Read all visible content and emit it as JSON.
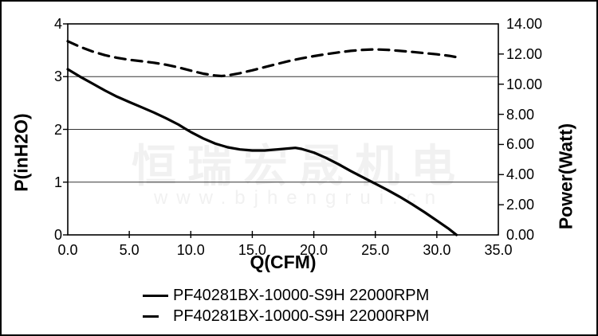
{
  "watermark": {
    "text": "恒瑞宏晟机电",
    "url": "www.bjhengrui.cn",
    "color": "#f1f1f1"
  },
  "colors": {
    "curve": "#000000",
    "grid": "#333333",
    "axis": "#000000",
    "background": "#ffffff"
  },
  "legend": {
    "items": [
      {
        "style": "solid",
        "label": "PF40281BX-10000-S9H 22000RPM"
      },
      {
        "style": "dashed",
        "label": "PF40281BX-10000-S9H 22000RPM"
      }
    ]
  },
  "chart_data": {
    "type": "line",
    "title": "",
    "xlabel": "Q(CFM)",
    "ylabel_left": "P(inH2O)",
    "ylabel_right": "Power(Watt)",
    "xlim": [
      0,
      35
    ],
    "ylim_left": [
      0,
      4
    ],
    "ylim_right": [
      0,
      14
    ],
    "grid": "horizontal",
    "legend_position": "bottom",
    "x_ticks": [
      {
        "label": "0.0",
        "value": 0
      },
      {
        "label": "5.0",
        "value": 5
      },
      {
        "label": "10.0",
        "value": 10
      },
      {
        "label": "15.0",
        "value": 15
      },
      {
        "label": "20.0",
        "value": 20
      },
      {
        "label": "25.0",
        "value": 25
      },
      {
        "label": "30.0",
        "value": 30
      },
      {
        "label": "35.0",
        "value": 35
      }
    ],
    "left_ticks": [
      {
        "label": "4",
        "value": 4
      },
      {
        "label": "3",
        "value": 3
      },
      {
        "label": "2",
        "value": 2
      },
      {
        "label": "1",
        "value": 1
      },
      {
        "label": "0",
        "value": 0
      }
    ],
    "right_ticks": [
      {
        "label": "14.00",
        "value": 14
      },
      {
        "label": "12.00",
        "value": 12
      },
      {
        "label": "10.00",
        "value": 10
      },
      {
        "label": "8.00",
        "value": 8
      },
      {
        "label": "6.00",
        "value": 6
      },
      {
        "label": "4.00",
        "value": 4
      },
      {
        "label": "2.00",
        "value": 2
      },
      {
        "label": "0.00",
        "value": 0
      }
    ],
    "series": [
      {
        "name": "PF40281BX-10000-S9H 22000RPM",
        "axis": "left",
        "line_style": "solid",
        "color": "#000000",
        "points": [
          [
            0,
            3.14
          ],
          [
            0.5,
            3.07
          ],
          [
            1,
            3.0
          ],
          [
            2,
            2.87
          ],
          [
            3,
            2.74
          ],
          [
            4,
            2.62
          ],
          [
            5,
            2.52
          ],
          [
            6,
            2.42
          ],
          [
            7,
            2.32
          ],
          [
            8,
            2.21
          ],
          [
            9,
            2.09
          ],
          [
            9.5,
            2.02
          ],
          [
            10,
            1.95
          ],
          [
            11,
            1.83
          ],
          [
            12,
            1.73
          ],
          [
            13,
            1.66
          ],
          [
            14,
            1.62
          ],
          [
            15,
            1.6
          ],
          [
            16,
            1.6
          ],
          [
            17,
            1.62
          ],
          [
            18,
            1.64
          ],
          [
            18.5,
            1.65
          ],
          [
            19,
            1.63
          ],
          [
            20,
            1.56
          ],
          [
            21,
            1.46
          ],
          [
            22,
            1.34
          ],
          [
            23,
            1.21
          ],
          [
            24,
            1.09
          ],
          [
            25,
            0.97
          ],
          [
            26,
            0.85
          ],
          [
            27,
            0.72
          ],
          [
            28,
            0.58
          ],
          [
            29,
            0.43
          ],
          [
            30,
            0.27
          ],
          [
            31,
            0.11
          ],
          [
            31.6,
            0
          ]
        ]
      },
      {
        "name": "PF40281BX-10000-S9H 22000RPM",
        "axis": "right",
        "line_style": "dashed",
        "color": "#000000",
        "points": [
          [
            0,
            12.85
          ],
          [
            1,
            12.48
          ],
          [
            2,
            12.17
          ],
          [
            3,
            11.93
          ],
          [
            4,
            11.75
          ],
          [
            5,
            11.62
          ],
          [
            6,
            11.52
          ],
          [
            7,
            11.42
          ],
          [
            8,
            11.29
          ],
          [
            9,
            11.11
          ],
          [
            10,
            10.9
          ],
          [
            11,
            10.7
          ],
          [
            12,
            10.57
          ],
          [
            12.5,
            10.54
          ],
          [
            13,
            10.58
          ],
          [
            14,
            10.73
          ],
          [
            15,
            10.92
          ],
          [
            16,
            11.13
          ],
          [
            17,
            11.34
          ],
          [
            18,
            11.54
          ],
          [
            19,
            11.71
          ],
          [
            20,
            11.86
          ],
          [
            21,
            11.99
          ],
          [
            22,
            12.11
          ],
          [
            23,
            12.21
          ],
          [
            24,
            12.28
          ],
          [
            25,
            12.31
          ],
          [
            26,
            12.28
          ],
          [
            27,
            12.21
          ],
          [
            28,
            12.14
          ],
          [
            29,
            12.06
          ],
          [
            30,
            11.98
          ],
          [
            31,
            11.88
          ],
          [
            31.5,
            11.81
          ]
        ]
      }
    ]
  }
}
